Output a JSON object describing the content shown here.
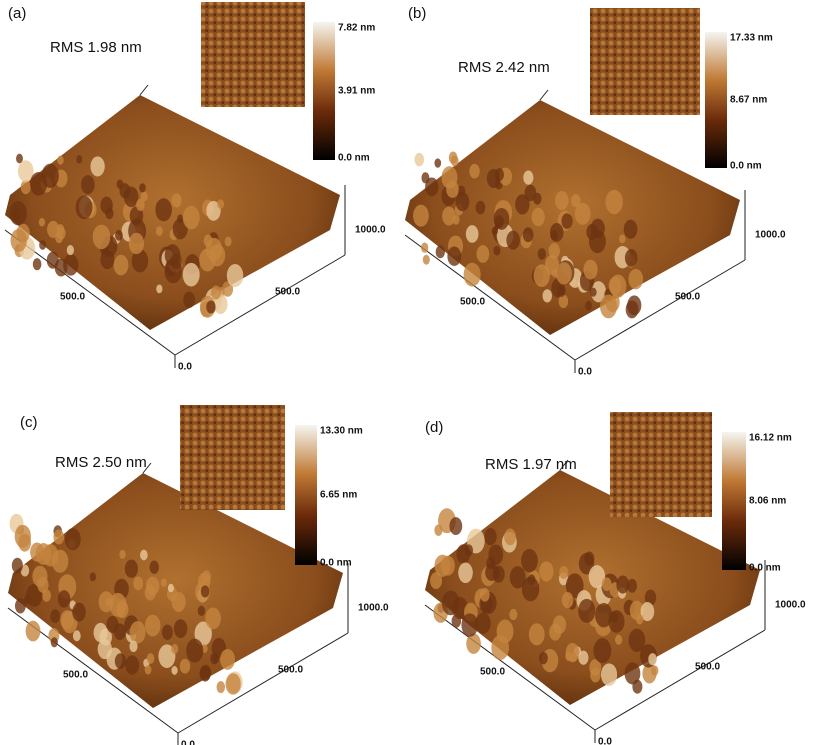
{
  "panels": [
    {
      "label": "(a)",
      "rms": "RMS 1.98 nm",
      "scale_max": "7.82 nm",
      "scale_mid": "3.91 nm",
      "scale_min": "0.0 nm",
      "axis_far": "1000.0",
      "axis_right": "500.0",
      "axis_left": "500.0",
      "axis_origin": "0.0"
    },
    {
      "label": "(b)",
      "rms": "RMS 2.42 nm",
      "scale_max": "17.33 nm",
      "scale_mid": "8.67 nm",
      "scale_min": "0.0 nm",
      "axis_far": "1000.0",
      "axis_right": "500.0",
      "axis_left": "500.0",
      "axis_origin": "0.0"
    },
    {
      "label": "(c)",
      "rms": "RMS 2.50 nm",
      "scale_max": "13.30 nm",
      "scale_mid": "6.65 nm",
      "scale_min": "0.0 nm",
      "axis_far": "1000.0",
      "axis_right": "500.0",
      "axis_left": "500.0",
      "axis_origin": "0.0"
    },
    {
      "label": "(d)",
      "rms": "RMS 1.97 nm",
      "scale_max": "16.12 nm",
      "scale_mid": "8.06 nm",
      "scale_min": "0.0 nm",
      "axis_far": "1000.0",
      "axis_right": "500.0",
      "axis_left": "500.0",
      "axis_origin": "0.0"
    }
  ]
}
